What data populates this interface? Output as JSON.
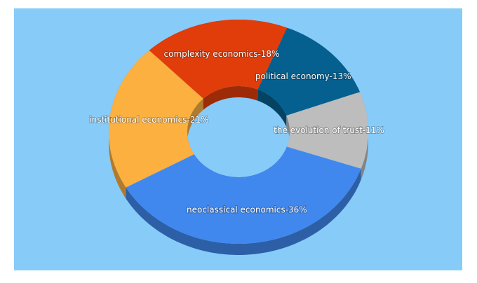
{
  "chart_data": {
    "type": "donut3d",
    "values": [
      13,
      11,
      36,
      21,
      18
    ],
    "value_labels": [
      "political economy-13%",
      "the evolution of trust-11%",
      "neoclassical economics-36%",
      "institutional economics-21%",
      "complexity economics-18%"
    ],
    "colors": [
      "#05608f",
      "#bdbdbd",
      "#4088ee",
      "#fbb040",
      "#e03d0a"
    ]
  }
}
